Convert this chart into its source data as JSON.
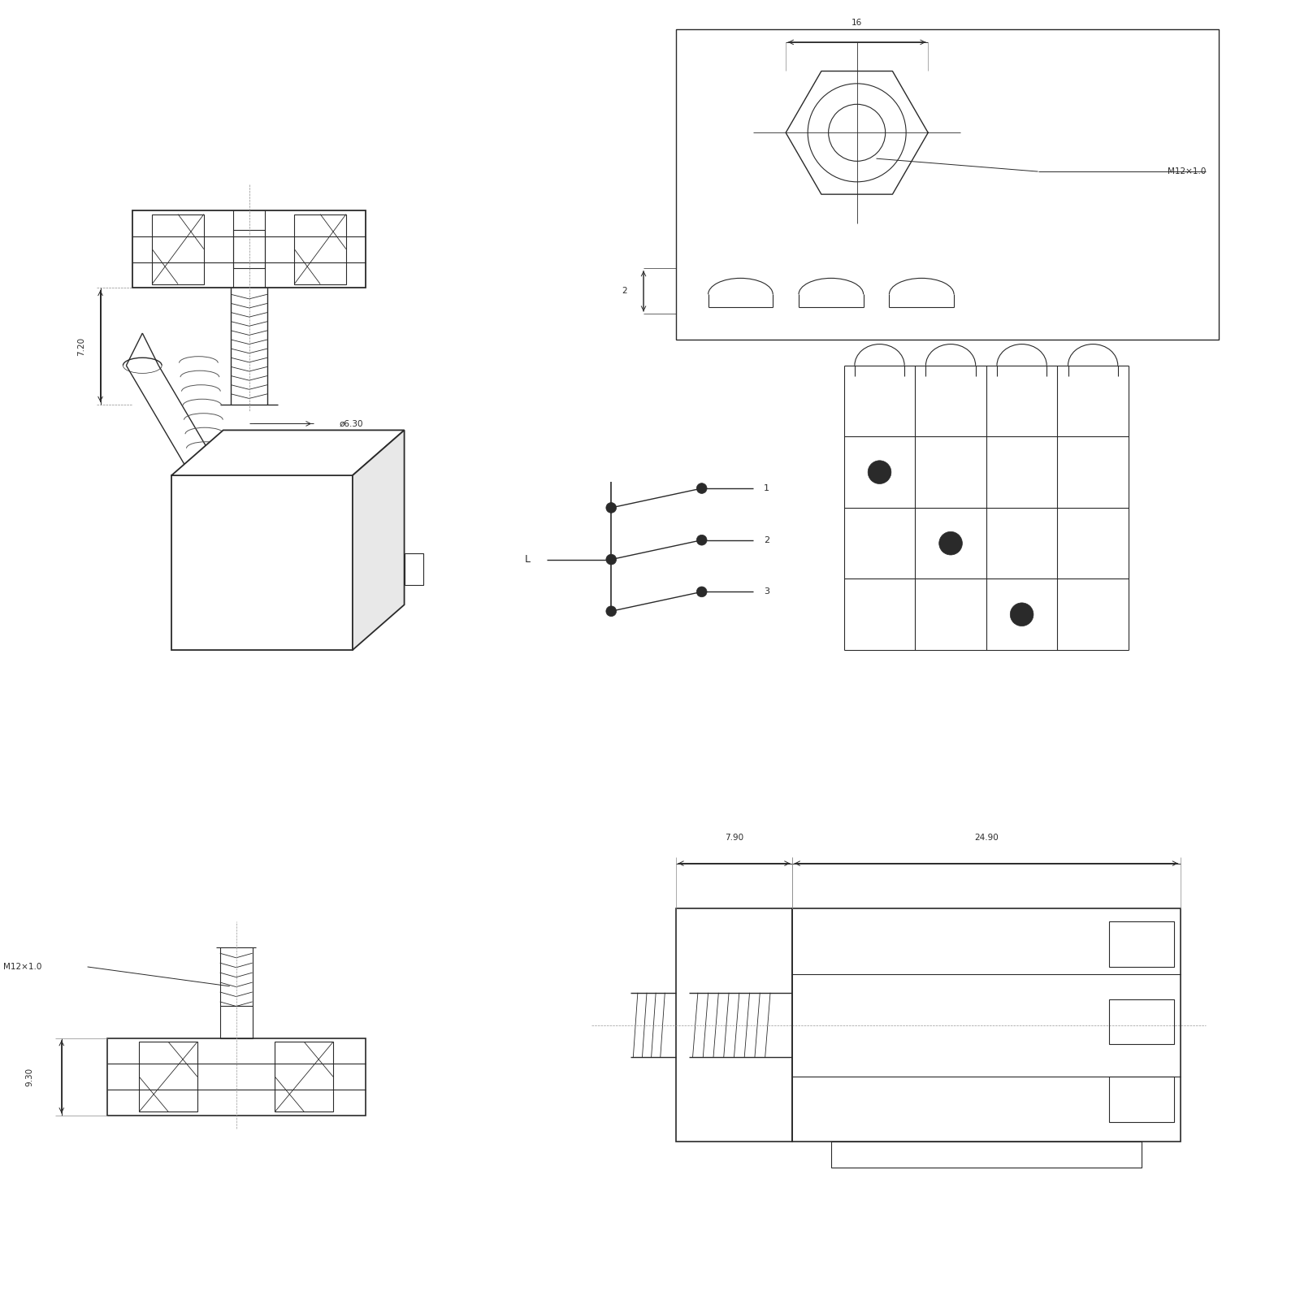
{
  "background_color": "#ffffff",
  "line_color": "#2a2a2a",
  "dim_color": "#2a2a2a",
  "dims": {
    "width_16": "16",
    "dim_720": "7.20",
    "dim_630": "ø6.30",
    "dim_M12": "M12×1.0",
    "dim_2": "2",
    "dim_2490": "24.90",
    "dim_790": "7.90",
    "dim_930": "9.30",
    "dim_M12b": "M12×1.0",
    "label_L": "L",
    "label_1": "1",
    "label_2": "2",
    "label_3": "3"
  }
}
